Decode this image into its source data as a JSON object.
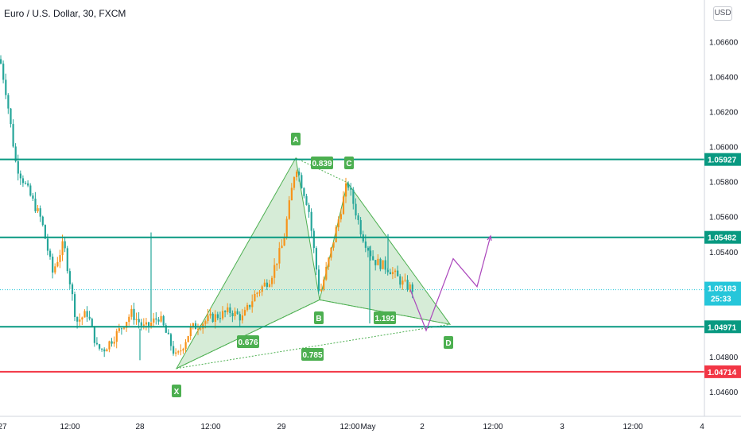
{
  "header": {
    "title": "Euro / U.S. Dollar, 30, FXCM",
    "currency": "USD"
  },
  "colors": {
    "up": "#f7931a",
    "down": "#26a69a",
    "teal_line": "#089981",
    "red_line": "#f23645",
    "pattern_fill": "#c8e6c9",
    "pattern_stroke": "#4caf50",
    "projection": "#ab47bc",
    "last_price_bg": "#26c6da"
  },
  "price_axis": {
    "labels": [
      "1.06600",
      "1.06400",
      "1.06200",
      "1.06000",
      "1.05800",
      "1.05600",
      "1.05400",
      "1.05200",
      "1.04800",
      "1.04600"
    ]
  },
  "time_axis": {
    "labels": [
      "27",
      "12:00",
      "28",
      "12:00",
      "29",
      "12:00",
      "May",
      "2",
      "12:00",
      "3",
      "12:00",
      "4"
    ]
  },
  "chart_data": {
    "type": "candlestick",
    "symbol": "EURUSD",
    "interval": "30",
    "ylim": [
      1.0455,
      1.0672
    ],
    "levels": [
      {
        "price": 1.05927,
        "label": "1.05927",
        "color": "teal"
      },
      {
        "price": 1.05482,
        "label": "1.05482",
        "color": "teal"
      },
      {
        "price": 1.04971,
        "label": "1.04971",
        "color": "teal"
      },
      {
        "price": 1.04714,
        "label": "1.04714",
        "color": "red"
      }
    ],
    "last_price": {
      "price": 1.05183,
      "label": "1.05183",
      "countdown": "25:33"
    },
    "harmonic_pattern": {
      "points": [
        {
          "name": "X",
          "price": 1.04733
        },
        {
          "name": "A",
          "price": 1.05935
        },
        {
          "name": "B",
          "price": 1.05125
        },
        {
          "name": "C",
          "price": 1.05795
        },
        {
          "name": "D",
          "price": 1.04985
        }
      ],
      "ratios": [
        "0.839",
        "0.676",
        "1.192",
        "0.785"
      ]
    },
    "projection_path": [
      1.0495,
      1.0536,
      1.052,
      1.0549
    ]
  }
}
